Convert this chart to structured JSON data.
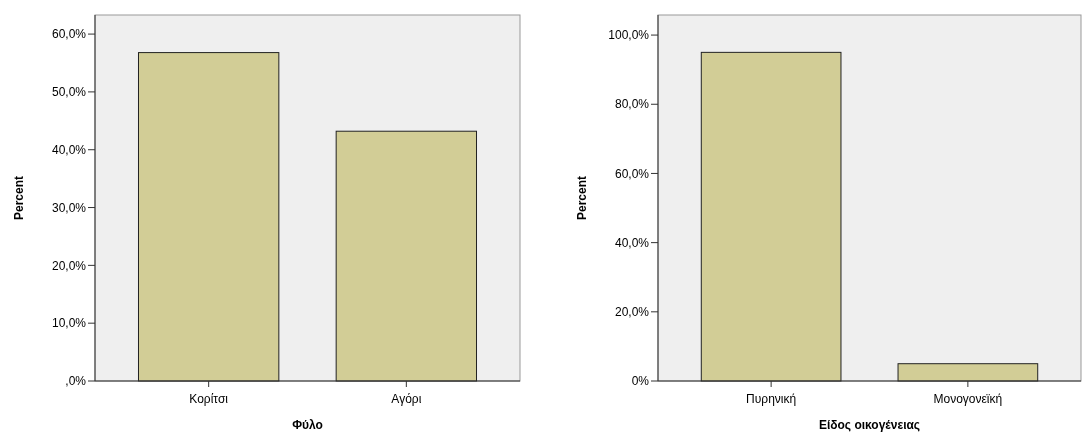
{
  "chart_data": [
    {
      "type": "bar",
      "xlabel": "Φύλο",
      "ylabel": "Percent",
      "categories": [
        "Κορίτσι",
        "Αγόρι"
      ],
      "values": [
        56.8,
        43.2
      ],
      "color": "#d2cd96",
      "ylim": [
        0,
        63.3
      ],
      "yticks": [
        {
          "value": 0,
          "label": ",0%"
        },
        {
          "value": 10,
          "label": "10,0%"
        },
        {
          "value": 20,
          "label": "20,0%"
        },
        {
          "value": 30,
          "label": "30,0%"
        },
        {
          "value": 40,
          "label": "40,0%"
        },
        {
          "value": 50,
          "label": "50,0%"
        },
        {
          "value": 60,
          "label": "60,0%"
        }
      ]
    },
    {
      "type": "bar",
      "xlabel": "Είδος οικογένειας",
      "ylabel": "Percent",
      "categories": [
        "Πυρηνική",
        "Μονογονεϊκή"
      ],
      "values": [
        95,
        5
      ],
      "color": "#d2cd96",
      "ylim": [
        0,
        105.8
      ],
      "yticks": [
        {
          "value": 0,
          "label": "0%"
        },
        {
          "value": 20,
          "label": "20,0%"
        },
        {
          "value": 40,
          "label": "40,0%"
        },
        {
          "value": 60,
          "label": "60,0%"
        },
        {
          "value": 80,
          "label": "80,0%"
        },
        {
          "value": 100,
          "label": "100,0%"
        }
      ]
    }
  ]
}
